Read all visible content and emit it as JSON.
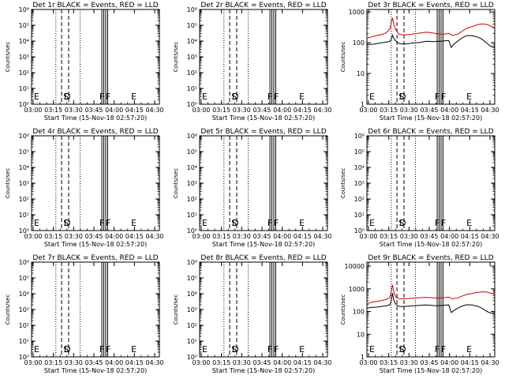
{
  "chart_data": [
    {
      "type": "line",
      "title": "Det 1r BLACK = Events, RED = LLD",
      "ylabel": "Counts/sec",
      "xlabel": "Start Time (15-Nov-18 02:57:20)",
      "x_tick_labels": [
        "03:00",
        "03:15",
        "03:30",
        "03:45",
        "04:00",
        "04:15",
        "04:30"
      ],
      "y_tick_labels": [
        "10⁰",
        "10¹",
        "10²",
        "10³",
        "10⁴",
        "10⁵",
        "10⁶"
      ],
      "ylim": [
        1,
        1000000
      ],
      "yscale": "log",
      "xlim_minutes": [
        0,
        100
      ],
      "markers": [
        "E",
        "S",
        "D",
        "F",
        "F",
        "E"
      ],
      "series": []
    },
    {
      "type": "line",
      "title": "Det 2r BLACK = Events, RED = LLD",
      "ylabel": "Counts/sec",
      "xlabel": "Start Time (15-Nov-18 02:57:20)",
      "x_tick_labels": [
        "03:00",
        "03:15",
        "03:30",
        "03:45",
        "04:00",
        "04:15",
        "04:30"
      ],
      "y_tick_labels": [
        "10⁰",
        "10¹",
        "10²",
        "10³",
        "10⁴",
        "10⁵",
        "10⁶"
      ],
      "ylim": [
        1,
        1000000
      ],
      "yscale": "log",
      "xlim_minutes": [
        0,
        100
      ],
      "markers": [
        "E",
        "S",
        "D",
        "F",
        "F",
        "E"
      ],
      "series": []
    },
    {
      "type": "line",
      "title": "Det 3r BLACK = Events, RED = LLD",
      "ylabel": "Counts/sec",
      "xlabel": "Start Time (15-Nov-18 02:57:20)",
      "x_tick_labels": [
        "03:00",
        "03:15",
        "03:30",
        "03:45",
        "04:00",
        "04:15",
        "04:30"
      ],
      "y_tick_labels": [
        "1",
        "10",
        "100",
        "1000"
      ],
      "ylim": [
        1,
        1200
      ],
      "yscale": "log",
      "xlim_minutes": [
        0,
        100
      ],
      "markers": [
        "E",
        "S",
        "D",
        "F",
        "F",
        "E"
      ],
      "series": [
        {
          "color": "#000000",
          "x": [
            0,
            3,
            6,
            9,
            12,
            15,
            18,
            19,
            20,
            21,
            22,
            23,
            25,
            28,
            31,
            34,
            37,
            40,
            43,
            46,
            49,
            52,
            55,
            58,
            61,
            64,
            66,
            68,
            71,
            74,
            78,
            82,
            86,
            90,
            94,
            97,
            100
          ],
          "y": [
            90,
            88,
            90,
            95,
            100,
            105,
            110,
            130,
            175,
            140,
            120,
            110,
            95,
            90,
            92,
            95,
            100,
            100,
            105,
            110,
            110,
            108,
            110,
            112,
            115,
            118,
            70,
            90,
            110,
            140,
            170,
            170,
            155,
            130,
            95,
            75,
            70
          ]
        },
        {
          "color": "#d00000",
          "x": [
            0,
            3,
            6,
            9,
            12,
            15,
            18,
            19,
            20,
            21,
            22,
            23,
            25,
            28,
            31,
            34,
            37,
            40,
            43,
            46,
            49,
            52,
            55,
            58,
            61,
            64,
            66,
            68,
            71,
            74,
            78,
            82,
            86,
            90,
            94,
            97,
            100
          ],
          "y": [
            140,
            150,
            165,
            175,
            185,
            210,
            280,
            450,
            620,
            420,
            300,
            250,
            190,
            180,
            180,
            185,
            195,
            200,
            210,
            220,
            215,
            205,
            195,
            190,
            190,
            200,
            180,
            175,
            190,
            230,
            290,
            330,
            380,
            410,
            390,
            340,
            300
          ]
        }
      ]
    },
    {
      "type": "line",
      "title": "Det 4r BLACK = Events, RED = LLD",
      "ylabel": "Counts/sec",
      "xlabel": "Start Time (15-Nov-18 02:57:20)",
      "x_tick_labels": [
        "03:00",
        "03:15",
        "03:30",
        "03:45",
        "04:00",
        "04:15",
        "04:30"
      ],
      "y_tick_labels": [
        "10⁰",
        "10¹",
        "10²",
        "10³",
        "10⁴",
        "10⁵",
        "10⁶"
      ],
      "ylim": [
        1,
        1000000
      ],
      "yscale": "log",
      "xlim_minutes": [
        0,
        100
      ],
      "markers": [
        "E",
        "S",
        "D",
        "F",
        "F",
        "E"
      ],
      "series": []
    },
    {
      "type": "line",
      "title": "Det 5r BLACK = Events, RED = LLD",
      "ylabel": "Counts/sec",
      "xlabel": "Start Time (15-Nov-18 02:57:20)",
      "x_tick_labels": [
        "03:00",
        "03:15",
        "03:30",
        "03:45",
        "04:00",
        "04:15",
        "04:30"
      ],
      "y_tick_labels": [
        "10⁰",
        "10¹",
        "10²",
        "10³",
        "10⁴",
        "10⁵",
        "10⁶"
      ],
      "ylim": [
        1,
        1000000
      ],
      "yscale": "log",
      "xlim_minutes": [
        0,
        100
      ],
      "markers": [
        "E",
        "S",
        "D",
        "F",
        "F",
        "E"
      ],
      "series": []
    },
    {
      "type": "line",
      "title": "Det 6r BLACK = Events, RED = LLD",
      "ylabel": "Counts/sec",
      "xlabel": "Start Time (15-Nov-18 02:57:20)",
      "x_tick_labels": [
        "03:00",
        "03:15",
        "03:30",
        "03:45",
        "04:00",
        "04:15",
        "04:30"
      ],
      "y_tick_labels": [
        "10⁰",
        "10¹",
        "10²",
        "10³",
        "10⁴",
        "10⁵",
        "10⁶"
      ],
      "ylim": [
        1,
        1000000
      ],
      "yscale": "log",
      "xlim_minutes": [
        0,
        100
      ],
      "markers": [
        "E",
        "S",
        "D",
        "F",
        "F",
        "E"
      ],
      "series": []
    },
    {
      "type": "line",
      "title": "Det 7r BLACK = Events, RED = LLD",
      "ylabel": "Counts/sec",
      "xlabel": "Start Time (15-Nov-18 02:57:20)",
      "x_tick_labels": [
        "03:00",
        "03:15",
        "03:30",
        "03:45",
        "04:00",
        "04:15",
        "04:30"
      ],
      "y_tick_labels": [
        "10⁰",
        "10¹",
        "10²",
        "10³",
        "10⁴",
        "10⁵",
        "10⁶"
      ],
      "ylim": [
        1,
        1000000
      ],
      "yscale": "log",
      "xlim_minutes": [
        0,
        100
      ],
      "markers": [
        "E",
        "S",
        "D",
        "F",
        "F",
        "E"
      ],
      "series": []
    },
    {
      "type": "line",
      "title": "Det 8r BLACK = Events, RED = LLD",
      "ylabel": "Counts/sec",
      "xlabel": "Start Time (15-Nov-18 02:57:20)",
      "x_tick_labels": [
        "03:00",
        "03:15",
        "03:30",
        "03:45",
        "04:00",
        "04:15",
        "04:30"
      ],
      "y_tick_labels": [
        "10⁰",
        "10¹",
        "10²",
        "10³",
        "10⁴",
        "10⁵",
        "10⁶"
      ],
      "ylim": [
        1,
        1000000
      ],
      "yscale": "log",
      "xlim_minutes": [
        0,
        100
      ],
      "markers": [
        "E",
        "S",
        "D",
        "F",
        "F",
        "E"
      ],
      "series": []
    },
    {
      "type": "line",
      "title": "Det 9r BLACK = Events, RED = LLD",
      "ylabel": "Counts/sec",
      "xlabel": "Start Time (15-Nov-18 02:57:20)",
      "x_tick_labels": [
        "03:00",
        "03:15",
        "03:30",
        "03:45",
        "04:00",
        "04:15",
        "04:30"
      ],
      "y_tick_labels": [
        "1",
        "10",
        "100",
        "1000",
        "10000"
      ],
      "ylim": [
        1,
        15000
      ],
      "yscale": "log",
      "xlim_minutes": [
        0,
        100
      ],
      "markers": [
        "E",
        "S",
        "D",
        "F",
        "F",
        "E"
      ],
      "series": [
        {
          "color": "#000000",
          "x": [
            0,
            3,
            6,
            9,
            12,
            15,
            18,
            19,
            20,
            21,
            22,
            23,
            25,
            28,
            31,
            34,
            37,
            40,
            43,
            46,
            49,
            52,
            55,
            58,
            61,
            64,
            66,
            68,
            71,
            74,
            78,
            82,
            86,
            90,
            94,
            97,
            100
          ],
          "y": [
            140,
            150,
            155,
            160,
            170,
            180,
            200,
            300,
            650,
            320,
            240,
            200,
            170,
            165,
            170,
            175,
            180,
            185,
            190,
            195,
            190,
            185,
            180,
            185,
            190,
            195,
            90,
            110,
            140,
            170,
            200,
            195,
            175,
            140,
            100,
            85,
            80
          ]
        },
        {
          "color": "#d00000",
          "x": [
            0,
            3,
            6,
            9,
            12,
            15,
            18,
            19,
            20,
            21,
            22,
            23,
            25,
            28,
            31,
            34,
            37,
            40,
            43,
            46,
            49,
            52,
            55,
            58,
            61,
            64,
            66,
            68,
            71,
            74,
            78,
            82,
            86,
            90,
            94,
            97,
            100
          ],
          "y": [
            220,
            250,
            270,
            290,
            310,
            340,
            420,
            800,
            1500,
            750,
            520,
            420,
            370,
            360,
            370,
            380,
            390,
            400,
            410,
            420,
            410,
            400,
            395,
            400,
            410,
            430,
            380,
            370,
            400,
            470,
            560,
            620,
            690,
            740,
            720,
            640,
            560
          ]
        }
      ]
    }
  ]
}
